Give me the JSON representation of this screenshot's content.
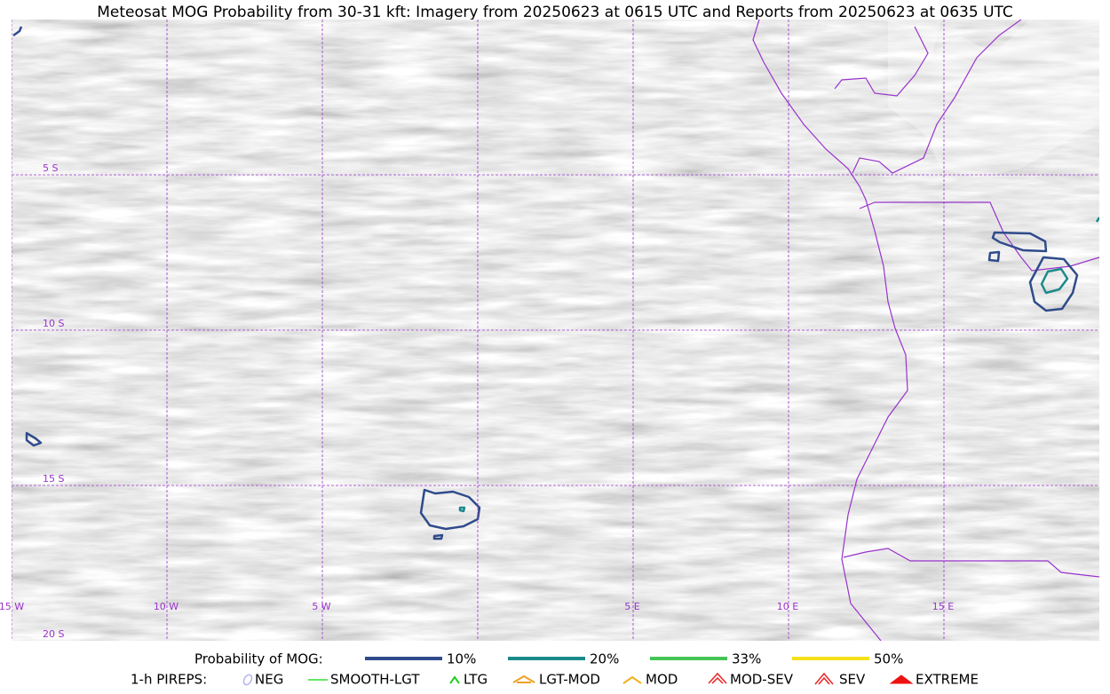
{
  "title": "Meteosat MOG Probability from 30-31 kft: Imagery from 20250623 at 0615 UTC and Reports from 20250623 at 0635 UTC",
  "latitude_labels": [
    "5 S",
    "10 S",
    "15 S",
    "20 S"
  ],
  "longitude_labels": [
    "15 W",
    "10 W",
    "5 W",
    "5 E",
    "10 E",
    "15 E"
  ],
  "legend": {
    "probability_title": "Probability of MOG:",
    "probability_levels": [
      {
        "label": "10%",
        "color": "#2f4b8c"
      },
      {
        "label": "20%",
        "color": "#1a8a8a"
      },
      {
        "label": "33%",
        "color": "#44c455"
      },
      {
        "label": "50%",
        "color": "#f5e01a"
      }
    ],
    "pireps_title": "1-h PIREPS:",
    "pireps": [
      {
        "label": "NEG",
        "color": "#b4b4f0"
      },
      {
        "label": "SMOOTH-LGT",
        "color": "#33dd33"
      },
      {
        "label": "LTG",
        "color": "#22cc22"
      },
      {
        "label": "LGT-MOD",
        "color": "#f0a020"
      },
      {
        "label": "MOD",
        "color": "#f0b020"
      },
      {
        "label": "MOD-SEV",
        "color": "#ee2222"
      },
      {
        "label": "SEV",
        "color": "#ee2222"
      },
      {
        "label": "EXTREME",
        "color": "#ee1111"
      }
    ]
  }
}
